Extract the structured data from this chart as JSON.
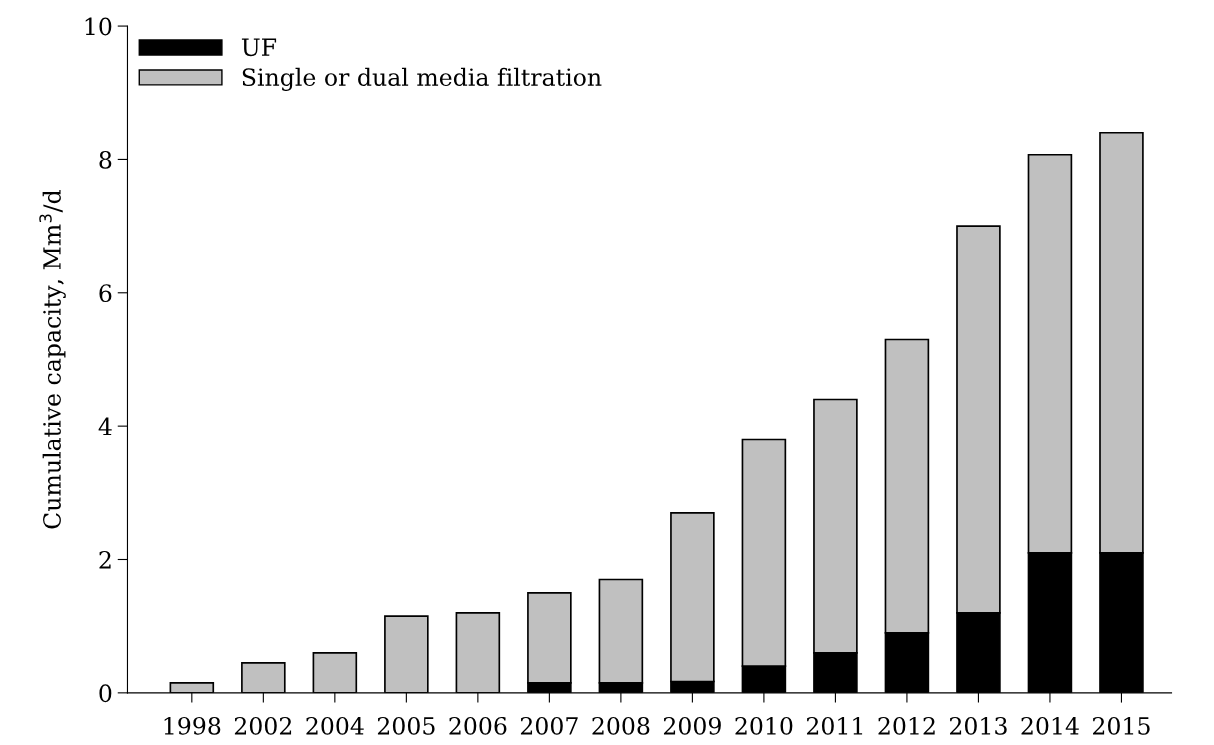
{
  "chart_data": {
    "type": "bar",
    "stacked": true,
    "ylabel": "Cumulative capacity, Mm$^{3}$/d",
    "categories": [
      "1998",
      "2002",
      "2004",
      "2005",
      "2006",
      "2007",
      "2008",
      "2009",
      "2010",
      "2011",
      "2012",
      "2013",
      "2014",
      "2015"
    ],
    "series": [
      {
        "name": "UF",
        "color": "#000000",
        "values": [
          0,
          0,
          0,
          0,
          0,
          0.15,
          0.15,
          0.17,
          0.4,
          0.6,
          0.9,
          1.2,
          2.1,
          2.1
        ]
      },
      {
        "name": "Single or dual media filtration",
        "color": "#c0c0c0",
        "values": [
          0.15,
          0.45,
          0.6,
          1.15,
          1.2,
          1.35,
          1.55,
          2.53,
          3.4,
          3.8,
          4.4,
          5.8,
          5.97,
          6.3
        ]
      }
    ],
    "ylim": [
      0,
      10
    ],
    "yticks": [
      0,
      2,
      4,
      6,
      8,
      10
    ],
    "legend": "top left",
    "grid": false
  }
}
